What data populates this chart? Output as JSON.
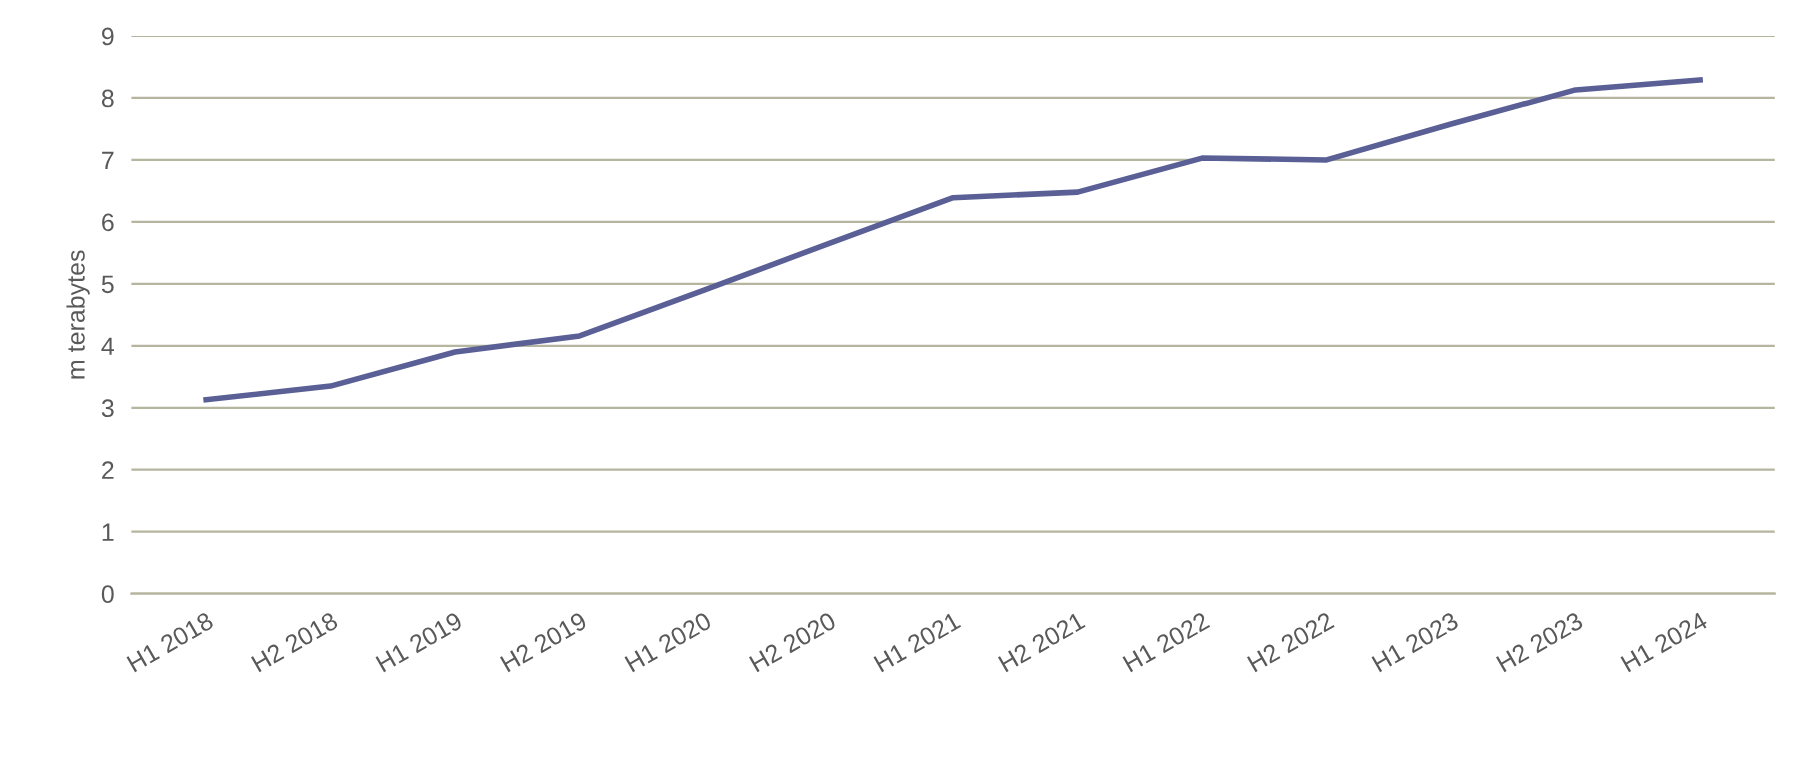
{
  "chart_data": {
    "type": "line",
    "ylabel": "m terabytes",
    "categories": [
      "H1 2018",
      "H2 2018",
      "H1 2019",
      "H2 2019",
      "H1 2020",
      "H2 2020",
      "H1 2021",
      "H2 2021",
      "H1 2022",
      "H2 2022",
      "H1 2023",
      "H2 2023",
      "H1 2024"
    ],
    "series": [
      {
        "color": "#5a6096",
        "values": [
          3.13,
          3.35,
          3.9,
          4.16,
          4.9,
          5.65,
          6.39,
          6.48,
          7.03,
          7.0,
          7.58,
          8.13,
          8.29
        ]
      }
    ],
    "ylim": [
      0,
      9
    ],
    "yticks": [
      0,
      1,
      2,
      3,
      4,
      5,
      6,
      7,
      8,
      9
    ],
    "grid": "y",
    "marker": "none",
    "line_style": "solid"
  }
}
